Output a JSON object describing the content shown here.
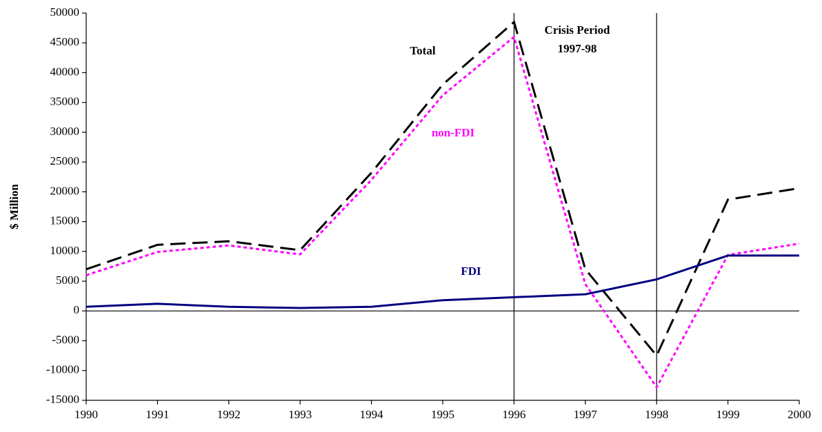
{
  "chart_data": {
    "type": "line",
    "y_label": "$ Million",
    "x": [
      1990,
      1991,
      1992,
      1993,
      1994,
      1995,
      1996,
      1997,
      1998,
      1999,
      2000
    ],
    "series": [
      {
        "name": "Total",
        "color": "#000000",
        "dash": "dashed",
        "values": [
          7000,
          11100,
          11700,
          10200,
          23200,
          38000,
          48500,
          7000,
          -7500,
          18700,
          20600
        ]
      },
      {
        "name": "non-FDI",
        "color": "#ff00ff",
        "dash": "dotted",
        "values": [
          6000,
          9900,
          11000,
          9500,
          22000,
          36200,
          46000,
          4500,
          -12800,
          9400,
          11300
        ]
      },
      {
        "name": "FDI",
        "color": "#000080",
        "dash": "solid",
        "values": [
          700,
          1200,
          700,
          500,
          700,
          1800,
          2300,
          2800,
          5300,
          9300,
          9300
        ]
      }
    ],
    "annotations": [
      "Crisis Period",
      "1997-98"
    ],
    "vlines": [
      1996,
      1998
    ],
    "xlim": [
      1990,
      2000
    ],
    "xticks": [
      1990,
      1991,
      1992,
      1993,
      1994,
      1995,
      1996,
      1997,
      1998,
      1999,
      2000
    ],
    "ylim": [
      -15000,
      50000
    ],
    "yticks": [
      -15000,
      -10000,
      -5000,
      0,
      5000,
      10000,
      15000,
      20000,
      25000,
      30000,
      35000,
      40000,
      45000,
      50000
    ],
    "grid": false
  }
}
